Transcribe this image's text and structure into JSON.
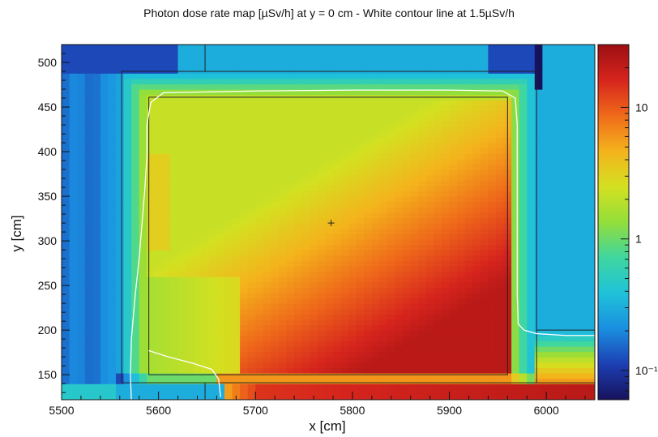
{
  "chart_data": {
    "type": "heatmap",
    "title": "Photon dose rate map [µSv/h] at y = 0 cm - White contour line at 1.5µSv/h",
    "xlabel": "x [cm]",
    "ylabel": "y [cm]",
    "xlim": [
      5500,
      6050
    ],
    "ylim": [
      122,
      520
    ],
    "x_ticks": [
      5500,
      5600,
      5700,
      5800,
      5900,
      6000
    ],
    "y_ticks": [
      150,
      200,
      250,
      300,
      350,
      400,
      450,
      500
    ],
    "colorbar": {
      "scale": "log",
      "range": [
        0.06,
        30
      ],
      "ticks": [
        {
          "value": 10,
          "label": "10"
        },
        {
          "value": 1,
          "label": "1"
        },
        {
          "value": 0.1,
          "label": "10⁻¹"
        }
      ],
      "palette": [
        "#17125c",
        "#1d3fb3",
        "#1a8fe0",
        "#1fc2d9",
        "#3fd6a0",
        "#93de3a",
        "#d4e021",
        "#f4b31c",
        "#ef6a1a",
        "#d6241d",
        "#9c0f12"
      ]
    },
    "contour": {
      "level": 1.5,
      "unit": "µSv/h",
      "color": "#ffffff",
      "points": [
        [
          5572,
          120
        ],
        [
          5571,
          150
        ],
        [
          5572,
          190
        ],
        [
          5576,
          240
        ],
        [
          5580,
          280
        ],
        [
          5583,
          320
        ],
        [
          5586,
          360
        ],
        [
          5588,
          395
        ],
        [
          5588,
          430
        ],
        [
          5592,
          455
        ],
        [
          5605,
          466
        ],
        [
          5700,
          468
        ],
        [
          5800,
          469
        ],
        [
          5900,
          469
        ],
        [
          5955,
          468
        ],
        [
          5968,
          460
        ],
        [
          5970,
          430
        ],
        [
          5970,
          300
        ],
        [
          5970,
          240
        ],
        [
          5971,
          207
        ],
        [
          5977,
          200
        ],
        [
          5990,
          196
        ],
        [
          6020,
          194
        ],
        [
          6050,
          194
        ]
      ]
    },
    "contour2": {
      "points": [
        [
          5590,
          177
        ],
        [
          5610,
          170
        ],
        [
          5635,
          163
        ],
        [
          5655,
          156
        ],
        [
          5662,
          145
        ],
        [
          5664,
          125
        ]
      ]
    },
    "marker": {
      "x": 5778,
      "y": 320
    }
  }
}
